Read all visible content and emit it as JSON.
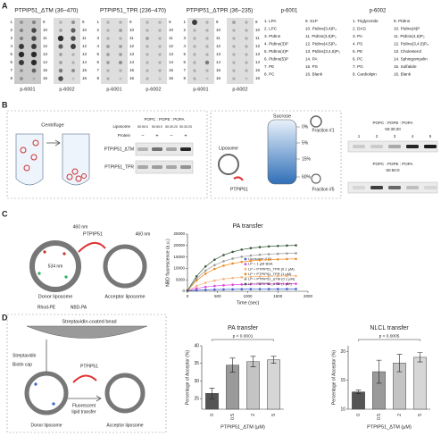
{
  "panel_labels": [
    "A",
    "B",
    "C",
    "D"
  ],
  "panel_a": {
    "membranes": [
      {
        "title": "PTPIP51_ΔTM (36–470)",
        "strips": [
          "p-6001",
          "p-6002"
        ]
      },
      {
        "title": "PTPIP51_TPR (236–470)",
        "strips": [
          "p-6001",
          "p-6002"
        ]
      },
      {
        "title": "PTPIP51_ΔTPR (36–235)",
        "strips": [
          "p-6001",
          "p-6002"
        ]
      }
    ],
    "spot_numbers": [
      1,
      2,
      3,
      4,
      5,
      6,
      7,
      8,
      9,
      10,
      11,
      12,
      13,
      14,
      15,
      16
    ],
    "legends": [
      {
        "title": "p-6001",
        "items": [
          "1. LPA",
          "2. LPC",
          "3. PtdIns",
          "4. PtdIns(3)P",
          "5. PtdIns(4)P",
          "6. PtdIns(5)P",
          "7. PE",
          "8. PC",
          "9. S1P",
          "10. PtdIns(3,4)P₂",
          "11. PtdIns(3,5)P₂",
          "12. PtdIns(4,5)P₂",
          "13. PtdIns(3,4,5)P₃",
          "14. PA",
          "15. PS",
          "16. Blank"
        ]
      },
      {
        "title": "p-6002",
        "items": [
          "1. Triglyceride",
          "2. DAG",
          "3. PA",
          "4. PS",
          "5. PE",
          "6. PC",
          "7. PG",
          "8. Cardiolipin",
          "9. PtdIns",
          "10. PtdIns(4)P",
          "11. PtdIns(4,5)P₂",
          "12. PtdIns(3,4,5)P₃",
          "13. Cholesterol",
          "14. Sphingomyelin",
          "15. Sulfatide",
          "16. Blank"
        ]
      }
    ]
  },
  "panel_b": {
    "centrifuge_label": "Centrifuge",
    "blot": {
      "liposome_label": "Liposome",
      "lipid_header": "POPC : POPE : POPA",
      "ratios": [
        "50:50:0",
        "50:50:0",
        "50:30:20",
        "50:30:20"
      ],
      "protein_label": "Protein",
      "protein_signs": [
        "−",
        "+",
        "−",
        "+"
      ],
      "rows": [
        "PTPIP51_ΔTM",
        "PTPIP51_TPR"
      ]
    },
    "flotation": {
      "sucrose_label": "Sucrose",
      "gradient": [
        "0%",
        "5%",
        "15%",
        "60%"
      ],
      "liposome_label": "Liposome",
      "protein_label": "PTPIP51",
      "fraction_top": "Fraction #1",
      "fraction_bottom": "Fraction #5"
    },
    "fraction_blots": [
      {
        "header": "POPC : POPE : POPA",
        "ratio": "50:30:20",
        "lanes": [
          "1",
          "2",
          "3",
          "4",
          "5"
        ]
      },
      {
        "header": "POPC : POPE : POPA",
        "ratio": "50:50:0"
      }
    ]
  },
  "panel_c": {
    "ptpip51": "PTPIP51",
    "sizes": [
      "460 nm",
      "534 nm",
      "460 nm"
    ],
    "donor": "Donor liposome",
    "acceptor": "Acceptor liposome",
    "rhod": "Rhod-PE",
    "nbd": "NBD-PA"
  },
  "panel_d": {
    "bead": "Streptavidin-coated bead",
    "streptavidin": "Streptavidin",
    "biotin": "Biotin cap",
    "ptpip51": "PTPIP51",
    "transfer": [
      "Fluorescent",
      "lipid transfer"
    ],
    "donor": "Donor liposome",
    "acceptor": "Acceptor liposome"
  },
  "chart_data": [
    {
      "type": "line",
      "title": "PA transfer",
      "x_label": "Time (sec)",
      "y_label": "NBD fluorescence (a.u.)",
      "x": [
        0,
        150,
        300,
        450,
        600,
        750,
        900,
        1050,
        1200,
        1350,
        1500,
        1650,
        1800
      ],
      "xlim": [
        0,
        2000
      ],
      "xticks": [
        0,
        500,
        1000,
        1500,
        2000
      ],
      "ylim": [
        0,
        25000
      ],
      "yticks": [
        0,
        5000,
        10000,
        15000,
        20000,
        25000
      ],
      "legend": "right",
      "series": [
        {
          "name": "Liposome (LP)",
          "color": "#3a5fcd",
          "values": [
            200,
            450,
            620,
            740,
            820,
            880,
            920,
            940,
            960,
            970,
            980,
            990,
            990
          ]
        },
        {
          "name": "LP + 1 μM BSA",
          "color": "#e040e0",
          "values": [
            300,
            1240,
            1880,
            2330,
            2630,
            2840,
            2990,
            3080,
            3150,
            3200,
            3230,
            3250,
            3270
          ]
        },
        {
          "name": "LP + PTPIP51_TPR (0.1 μM)",
          "color": "#f5b27a",
          "values": [
            300,
            2330,
            3730,
            4690,
            5350,
            5810,
            6120,
            6330,
            6480,
            6580,
            6640,
            6700,
            6730
          ]
        },
        {
          "name": "LP + PTPIP51_TPR (1 μM)",
          "color": "#ef8a1c",
          "values": [
            300,
            4670,
            7690,
            9750,
            11180,
            12160,
            12830,
            13290,
            13600,
            13820,
            13960,
            14080,
            14150
          ]
        },
        {
          "name": "LP + PTPIP51_ΔTM (0.1 μM)",
          "color": "#9a9a9a",
          "values": [
            300,
            5450,
            9010,
            11440,
            13120,
            14280,
            15070,
            15610,
            15980,
            16240,
            16400,
            16540,
            16620
          ]
        },
        {
          "name": "LP + PTPIP51_ΔTM (1 μM)",
          "color": "#3b5b3b",
          "values": [
            300,
            6540,
            10860,
            13800,
            15840,
            17240,
            18200,
            18860,
            19300,
            19620,
            19820,
            19980,
            20080
          ]
        }
      ]
    },
    {
      "type": "bar",
      "title": "PA transfer",
      "x_label": "PTPIP51_ΔTM (μM)",
      "y_label": "Percentage of Acceptor (%)",
      "annotation": "p < 0.0001",
      "categories": [
        "0",
        "0.5",
        "2",
        "5"
      ],
      "values": [
        26.5,
        34.5,
        35.5,
        36
      ],
      "errors": [
        1.5,
        2,
        1.5,
        1
      ],
      "colors": [
        "#555555",
        "#9a9a9a",
        "#c4c4c4",
        "#d6d6d6"
      ],
      "ylim": [
        22,
        40
      ],
      "yticks": [
        25,
        30,
        35,
        40
      ]
    },
    {
      "type": "bar",
      "title": "NLCL transfer",
      "x_label": "PTPIP51_ΔTM (μM)",
      "y_label": "Percentage of Acceptor (%)",
      "annotation": "p < 0.0005",
      "categories": [
        "0",
        "0.5",
        "2",
        "5"
      ],
      "values": [
        13,
        16.5,
        18,
        19
      ],
      "errors": [
        0.3,
        2,
        1.5,
        0.8
      ],
      "colors": [
        "#555555",
        "#9a9a9a",
        "#c4c4c4",
        "#d6d6d6"
      ],
      "ylim": [
        10,
        21
      ],
      "yticks": [
        10,
        15,
        20
      ]
    }
  ]
}
